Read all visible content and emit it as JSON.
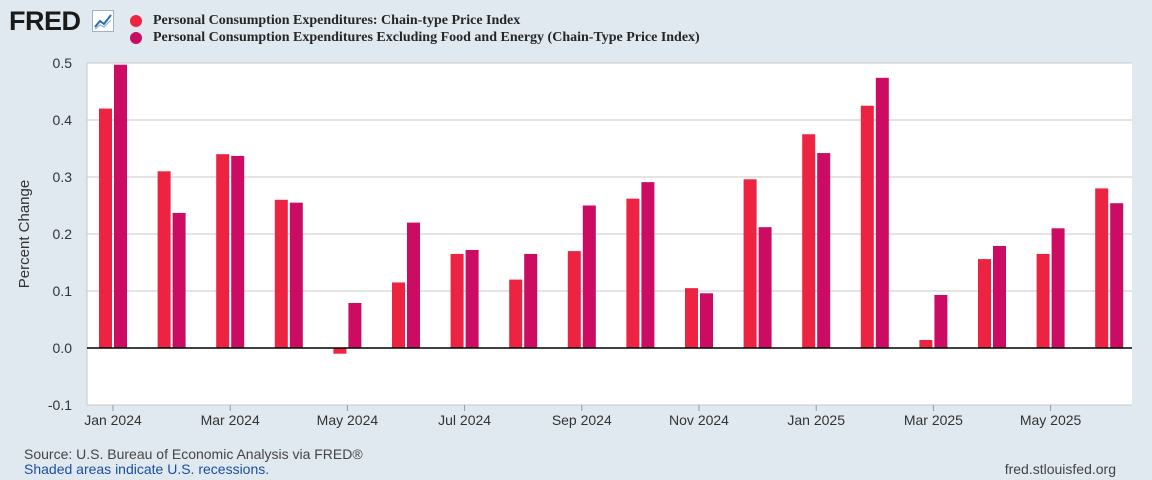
{
  "header": {
    "logo_text": "FRED",
    "logo_icon": "trend-chart-icon"
  },
  "legend": [
    {
      "label": "Personal Consumption Expenditures: Chain-type Price Index",
      "color": "#ec2341"
    },
    {
      "label": "Personal Consumption Expenditures Excluding Food and Energy (Chain-Type Price Index)",
      "color": "#cc0c63"
    }
  ],
  "chart_data": {
    "type": "bar",
    "ylabel": "Percent Change",
    "ylim": [
      -0.1,
      0.5
    ],
    "yticks": [
      "0.5",
      "0.4",
      "0.3",
      "0.2",
      "0.1",
      "0.0",
      "-0.1"
    ],
    "ytick_values": [
      0.5,
      0.4,
      0.3,
      0.2,
      0.1,
      0.0,
      -0.1
    ],
    "xtick_labels": [
      "Jan 2024",
      "Mar 2024",
      "May 2024",
      "Jul 2024",
      "Sep 2024",
      "Nov 2024",
      "Jan 2025",
      "Mar 2025",
      "May 2025"
    ],
    "xtick_indices": [
      0,
      2,
      4,
      6,
      8,
      10,
      12,
      14,
      16
    ],
    "categories": [
      "Jan 2024",
      "Feb 2024",
      "Mar 2024",
      "Apr 2024",
      "May 2024",
      "Jun 2024",
      "Jul 2024",
      "Aug 2024",
      "Sep 2024",
      "Oct 2024",
      "Nov 2024",
      "Dec 2024",
      "Jan 2025",
      "Feb 2025",
      "Mar 2025",
      "Apr 2025",
      "May 2025",
      "Jun 2025"
    ],
    "series": [
      {
        "name": "Personal Consumption Expenditures: Chain-type Price Index",
        "color": "#ec2341",
        "values": [
          0.42,
          0.31,
          0.34,
          0.26,
          -0.01,
          0.115,
          0.165,
          0.12,
          0.17,
          0.262,
          0.105,
          0.296,
          0.375,
          0.425,
          0.014,
          0.156,
          0.165,
          0.28
        ]
      },
      {
        "name": "Personal Consumption Expenditures Excluding Food and Energy (Chain-Type Price Index)",
        "color": "#cc0c63",
        "values": [
          0.497,
          0.237,
          0.337,
          0.255,
          0.079,
          0.22,
          0.172,
          0.165,
          0.25,
          0.291,
          0.096,
          0.212,
          0.342,
          0.474,
          0.093,
          0.179,
          0.21,
          0.254
        ]
      }
    ],
    "grid": true
  },
  "footer": {
    "source": "Source: U.S. Bureau of Economic Analysis via FRED®",
    "note": "Shaded areas indicate U.S. recessions.",
    "url": "fred.stlouisfed.org"
  }
}
